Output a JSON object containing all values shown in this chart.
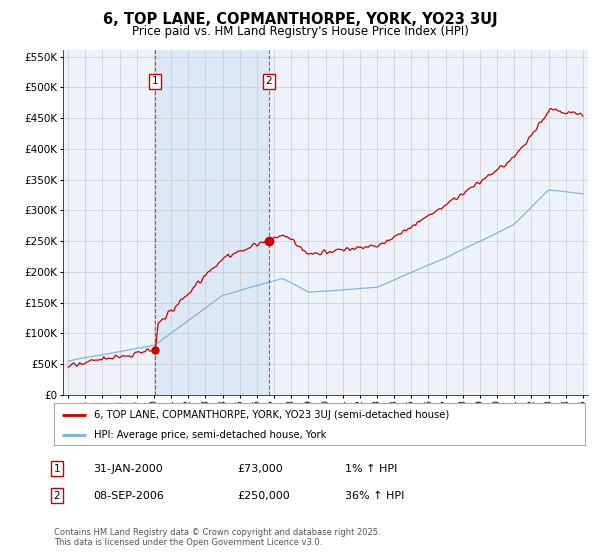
{
  "title": "6, TOP LANE, COPMANTHORPE, YORK, YO23 3UJ",
  "subtitle": "Price paid vs. HM Land Registry's House Price Index (HPI)",
  "legend_line1": "6, TOP LANE, COPMANTHORPE, YORK, YO23 3UJ (semi-detached house)",
  "legend_line2": "HPI: Average price, semi-detached house, York",
  "footnote": "Contains HM Land Registry data © Crown copyright and database right 2025.\nThis data is licensed under the Open Government Licence v3.0.",
  "marker1_date": "31-JAN-2000",
  "marker1_price": "£73,000",
  "marker1_hpi": "1% ↑ HPI",
  "marker1_year": 2000.08,
  "marker1_value": 73000,
  "marker2_date": "08-SEP-2006",
  "marker2_price": "£250,000",
  "marker2_hpi": "36% ↑ HPI",
  "marker2_year": 2006.69,
  "marker2_value": 250000,
  "ylim": [
    0,
    560000
  ],
  "xlim_left": 1994.7,
  "xlim_right": 2025.3,
  "red_color": "#cc0000",
  "blue_color": "#7ab0d4",
  "shade_color": "#dce8f5",
  "bg_color": "#eef2fa",
  "grid_color": "#cccccc",
  "seed": 17
}
